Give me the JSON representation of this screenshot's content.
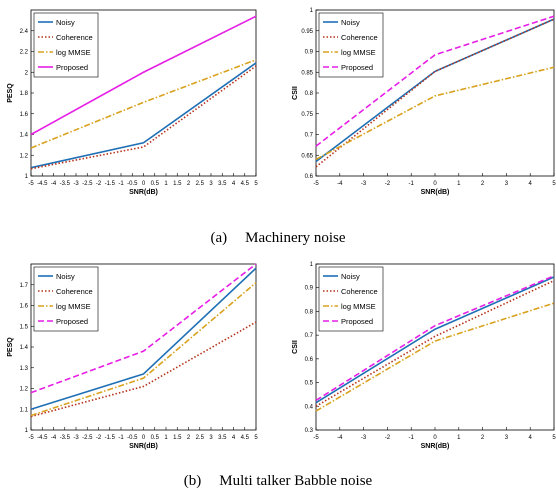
{
  "captions": [
    {
      "tag": "(a)",
      "text": "Machinery noise"
    },
    {
      "tag": "(b)",
      "text": "Multi talker Babble noise"
    }
  ],
  "chart_data": [
    {
      "type": "line",
      "xlabel": "SNR(dB)",
      "ylabel": "PESQ",
      "x": [
        -5,
        0,
        5
      ],
      "xlim": [
        -5,
        5
      ],
      "xticks": [
        -5,
        -4.5,
        -4,
        -3.5,
        -3,
        -2.5,
        -2,
        -1.5,
        -1,
        -0.5,
        0,
        0.5,
        1,
        1.5,
        2,
        2.5,
        3,
        3.5,
        4,
        4.5,
        5
      ],
      "ylim": [
        1,
        2.6
      ],
      "yticks": [
        1,
        1.2,
        1.4,
        1.6,
        1.8,
        2,
        2.2,
        2.4
      ],
      "legend": "top-left",
      "grid": false,
      "series": [
        {
          "name": "Noisy",
          "values": [
            1.08,
            1.32,
            2.09
          ],
          "color": "#1f6fb5",
          "dash": "solid"
        },
        {
          "name": "Coherence",
          "values": [
            1.07,
            1.28,
            2.06
          ],
          "color": "#b5321a",
          "dash": "dotted"
        },
        {
          "name": "log MMSE",
          "values": [
            1.27,
            1.71,
            2.12
          ],
          "color": "#d9a21e",
          "dash": "dashdot"
        },
        {
          "name": "Proposed",
          "values": [
            1.4,
            2.0,
            2.54
          ],
          "color": "#e61ee6",
          "dash": "solid"
        }
      ]
    },
    {
      "type": "line",
      "xlabel": "SNR(dB)",
      "ylabel": "CSII",
      "x": [
        -5,
        0,
        5
      ],
      "xlim": [
        -5,
        5
      ],
      "xticks": [
        -5,
        -4,
        -3,
        -2,
        -1,
        0,
        1,
        2,
        3,
        4,
        5
      ],
      "ylim": [
        0.6,
        1
      ],
      "yticks": [
        0.6,
        0.65,
        0.7,
        0.75,
        0.8,
        0.85,
        0.9,
        0.95,
        1
      ],
      "legend": "top-left",
      "grid": false,
      "series": [
        {
          "name": "Noisy",
          "values": [
            0.635,
            0.852,
            0.978
          ],
          "color": "#1f6fb5",
          "dash": "solid"
        },
        {
          "name": "Coherence",
          "values": [
            0.622,
            0.852,
            0.978
          ],
          "color": "#b5321a",
          "dash": "dotted"
        },
        {
          "name": "log MMSE",
          "values": [
            0.64,
            0.793,
            0.862
          ],
          "color": "#d9a21e",
          "dash": "dashdot"
        },
        {
          "name": "Proposed",
          "values": [
            0.672,
            0.892,
            0.985
          ],
          "color": "#e61ee6",
          "dash": "dashed"
        }
      ]
    },
    {
      "type": "line",
      "xlabel": "SNR(dB)",
      "ylabel": "PESQ",
      "x": [
        -5,
        0,
        5
      ],
      "xlim": [
        -5,
        5
      ],
      "xticks": [
        -5,
        -4.5,
        -4,
        -3.5,
        -3,
        -2.5,
        -2,
        -1.5,
        -1,
        -0.5,
        0,
        0.5,
        1,
        1.5,
        2,
        2.5,
        3,
        3.5,
        4,
        4.5,
        5
      ],
      "ylim": [
        1,
        1.8
      ],
      "yticks": [
        1,
        1.1,
        1.2,
        1.3,
        1.4,
        1.5,
        1.6,
        1.7
      ],
      "legend": "top-left",
      "grid": false,
      "series": [
        {
          "name": "Noisy",
          "values": [
            1.1,
            1.27,
            1.78
          ],
          "color": "#1f6fb5",
          "dash": "solid"
        },
        {
          "name": "Coherence",
          "values": [
            1.065,
            1.21,
            1.52
          ],
          "color": "#b5321a",
          "dash": "dotted"
        },
        {
          "name": "log MMSE",
          "values": [
            1.07,
            1.25,
            1.71
          ],
          "color": "#d9a21e",
          "dash": "dashdot"
        },
        {
          "name": "Proposed",
          "values": [
            1.18,
            1.38,
            1.8
          ],
          "color": "#e61ee6",
          "dash": "dashed"
        }
      ]
    },
    {
      "type": "line",
      "xlabel": "SNR(dB)",
      "ylabel": "CSII",
      "x": [
        -5,
        0,
        5
      ],
      "xlim": [
        -5,
        5
      ],
      "xticks": [
        -5,
        -4,
        -3,
        -2,
        -1,
        0,
        1,
        2,
        3,
        4,
        5
      ],
      "ylim": [
        0.3,
        1
      ],
      "yticks": [
        0.3,
        0.4,
        0.5,
        0.6,
        0.7,
        0.8,
        0.9,
        1
      ],
      "legend": "top-left",
      "grid": false,
      "series": [
        {
          "name": "Noisy",
          "values": [
            0.415,
            0.725,
            0.945
          ],
          "color": "#1f6fb5",
          "dash": "solid"
        },
        {
          "name": "Coherence",
          "values": [
            0.4,
            0.695,
            0.93
          ],
          "color": "#b5321a",
          "dash": "dotted"
        },
        {
          "name": "log MMSE",
          "values": [
            0.38,
            0.675,
            0.835
          ],
          "color": "#d9a21e",
          "dash": "dashdot"
        },
        {
          "name": "Proposed",
          "values": [
            0.425,
            0.74,
            0.95
          ],
          "color": "#e61ee6",
          "dash": "dashed"
        }
      ]
    }
  ]
}
